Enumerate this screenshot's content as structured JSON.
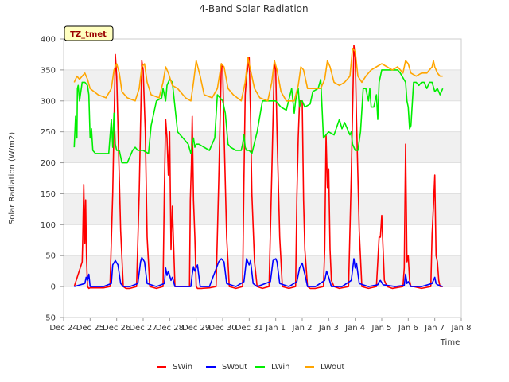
{
  "chart_data": {
    "type": "line",
    "title": "4-Band Solar Radiation",
    "xlabel": "Time",
    "ylabel": "Solar Radiation (W/m2)",
    "ylim": [
      -50,
      400
    ],
    "yticks": [
      -50,
      0,
      50,
      100,
      150,
      200,
      250,
      300,
      350,
      400
    ],
    "xlim": [
      0,
      15
    ],
    "xtick_values": [
      0,
      1,
      2,
      3,
      4,
      5,
      6,
      7,
      8,
      9,
      10,
      11,
      12,
      13,
      14,
      15
    ],
    "xtick_labels": [
      "Dec 24",
      "Dec 25",
      "Dec 26",
      "Dec 27",
      "Dec 28",
      "Dec 29",
      "Dec 30",
      "Dec 31",
      "Jan 1",
      "Jan 2",
      "Jan 3",
      "Jan 4",
      "Jan 5",
      "Jan 6",
      "Jan 7",
      "Jan 8"
    ],
    "site_tag": "TZ_tmet",
    "colors": {
      "SWin": "#ff0000",
      "SWout": "#0000ff",
      "LWin": "#00ee00",
      "LWout": "#ffa500",
      "band": "#f0f0f0",
      "tag_bg": "#ffffc0",
      "tag_text": "#990000"
    },
    "series": [
      {
        "name": "SWin",
        "color": "#ff0000",
        "x": [
          0.4,
          0.7,
          0.72,
          0.76,
          0.8,
          0.83,
          0.86,
          0.9,
          0.95,
          1.0,
          1.5,
          1.75,
          1.85,
          1.95,
          2.0,
          2.05,
          2.15,
          2.25,
          2.35,
          2.5,
          2.75,
          2.85,
          2.95,
          3.0,
          3.08,
          3.15,
          3.25,
          3.5,
          3.75,
          3.8,
          3.85,
          3.9,
          3.95,
          4.0,
          4.05,
          4.1,
          4.2,
          4.75,
          4.78,
          4.82,
          4.85,
          4.9,
          4.95,
          5.0,
          5.05,
          5.1,
          5.2,
          5.5,
          5.75,
          5.85,
          5.95,
          6.0,
          6.05,
          6.15,
          6.25,
          6.5,
          6.75,
          6.8,
          6.85,
          6.9,
          7.0,
          7.05,
          7.1,
          7.2,
          7.3,
          7.5,
          7.75,
          7.85,
          7.95,
          8.0,
          8.05,
          8.15,
          8.25,
          8.5,
          8.75,
          8.8,
          8.85,
          8.9,
          9.0,
          9.05,
          9.1,
          9.2,
          9.3,
          9.5,
          9.8,
          9.85,
          9.9,
          9.95,
          10.0,
          10.05,
          10.1,
          10.2,
          10.4,
          10.75,
          10.85,
          10.95,
          11.0,
          11.05,
          11.15,
          11.25,
          11.5,
          11.8,
          11.85,
          11.9,
          11.95,
          12.0,
          12.05,
          12.1,
          12.2,
          12.4,
          12.8,
          12.85,
          12.9,
          12.95,
          13.0,
          13.05,
          13.1,
          13.2,
          13.5,
          13.85,
          13.9,
          13.95,
          14.0,
          14.05,
          14.1,
          14.15,
          14.2,
          14.3
        ],
        "y": [
          0,
          40,
          75,
          165,
          70,
          140,
          50,
          0,
          -3,
          -2,
          -2,
          0,
          150,
          375,
          340,
          260,
          90,
          0,
          -3,
          -3,
          0,
          150,
          365,
          350,
          250,
          80,
          0,
          -3,
          0,
          160,
          270,
          240,
          180,
          250,
          60,
          130,
          0,
          0,
          140,
          200,
          275,
          140,
          80,
          0,
          -3,
          -3,
          -3,
          -2,
          0,
          170,
          360,
          355,
          250,
          80,
          0,
          -3,
          0,
          170,
          310,
          340,
          370,
          280,
          150,
          40,
          0,
          -3,
          0,
          180,
          365,
          350,
          250,
          80,
          0,
          -3,
          0,
          145,
          240,
          300,
          300,
          140,
          60,
          0,
          -3,
          -3,
          0,
          60,
          245,
          160,
          190,
          60,
          10,
          0,
          -3,
          0,
          180,
          390,
          370,
          270,
          90,
          0,
          -3,
          0,
          40,
          80,
          80,
          115,
          60,
          10,
          0,
          -3,
          0,
          30,
          230,
          40,
          50,
          10,
          0,
          0,
          -3,
          0,
          85,
          130,
          180,
          50,
          40,
          10,
          0,
          0
        ]
      },
      {
        "name": "SWout",
        "color": "#0000ff",
        "x": [
          0.4,
          0.8,
          0.85,
          0.9,
          0.95,
          1.0,
          1.5,
          1.8,
          1.85,
          1.95,
          2.05,
          2.15,
          2.25,
          2.5,
          2.8,
          2.9,
          2.95,
          3.05,
          3.15,
          3.5,
          3.8,
          3.85,
          3.9,
          3.95,
          4.05,
          4.1,
          4.2,
          4.8,
          4.85,
          4.9,
          4.95,
          5.05,
          5.15,
          5.5,
          5.85,
          5.95,
          6.05,
          6.15,
          6.5,
          6.8,
          6.9,
          7.0,
          7.05,
          7.15,
          7.3,
          7.8,
          7.9,
          8.0,
          8.05,
          8.15,
          8.5,
          8.8,
          8.9,
          9.0,
          9.1,
          9.2,
          9.5,
          9.85,
          9.92,
          10.0,
          10.1,
          10.5,
          10.85,
          10.95,
          11.0,
          11.05,
          11.15,
          11.5,
          11.85,
          11.9,
          11.95,
          12.05,
          12.5,
          12.85,
          12.9,
          12.95,
          13.0,
          13.1,
          13.5,
          13.9,
          13.95,
          14.0,
          14.05,
          14.1,
          14.3
        ],
        "y": [
          0,
          5,
          15,
          10,
          20,
          0,
          0,
          5,
          35,
          42,
          35,
          5,
          0,
          0,
          5,
          40,
          47,
          40,
          5,
          0,
          5,
          30,
          18,
          25,
          10,
          15,
          0,
          0,
          20,
          32,
          25,
          35,
          0,
          0,
          40,
          45,
          40,
          5,
          0,
          8,
          45,
          35,
          42,
          5,
          0,
          8,
          42,
          45,
          40,
          5,
          0,
          8,
          30,
          38,
          20,
          0,
          0,
          10,
          25,
          15,
          0,
          0,
          10,
          45,
          30,
          38,
          5,
          0,
          3,
          8,
          10,
          3,
          0,
          2,
          20,
          5,
          8,
          0,
          0,
          5,
          10,
          15,
          5,
          3,
          0
        ]
      },
      {
        "name": "LWin",
        "color": "#00ee00",
        "x": [
          0.4,
          0.45,
          0.5,
          0.52,
          0.55,
          0.6,
          0.7,
          0.8,
          0.9,
          0.95,
          1.0,
          1.05,
          1.1,
          1.2,
          1.5,
          1.7,
          1.8,
          1.85,
          1.9,
          1.95,
          2.0,
          2.1,
          2.2,
          2.4,
          2.6,
          2.7,
          2.8,
          3.0,
          3.2,
          3.3,
          3.5,
          3.7,
          3.75,
          3.8,
          3.85,
          3.9,
          4.0,
          4.1,
          4.3,
          4.5,
          4.7,
          4.8,
          4.9,
          4.95,
          5.0,
          5.1,
          5.5,
          5.7,
          5.8,
          6.0,
          6.1,
          6.2,
          6.3,
          6.5,
          6.6,
          6.7,
          6.75,
          6.8,
          6.85,
          6.9,
          7.0,
          7.1,
          7.3,
          7.5,
          8.0,
          8.2,
          8.4,
          8.6,
          8.65,
          8.7,
          8.75,
          8.8,
          8.85,
          8.9,
          8.95,
          9.0,
          9.1,
          9.3,
          9.4,
          9.6,
          9.7,
          9.8,
          10.0,
          10.2,
          10.4,
          10.5,
          10.6,
          10.7,
          10.8,
          10.85,
          10.9,
          11.0,
          11.1,
          11.2,
          11.3,
          11.4,
          11.5,
          11.55,
          11.6,
          11.7,
          11.8,
          11.85,
          11.9,
          12.0,
          12.1,
          12.2,
          12.3,
          12.4,
          12.5,
          12.6,
          12.7,
          12.9,
          12.95,
          13.0,
          13.05,
          13.1,
          13.2,
          13.3,
          13.4,
          13.5,
          13.6,
          13.7,
          13.8,
          13.9,
          14.0,
          14.1,
          14.2,
          14.3
        ],
        "y": [
          225,
          275,
          240,
          320,
          325,
          300,
          330,
          330,
          325,
          310,
          240,
          255,
          220,
          215,
          215,
          215,
          270,
          225,
          280,
          230,
          220,
          220,
          200,
          200,
          220,
          225,
          220,
          220,
          215,
          260,
          300,
          305,
          320,
          310,
          300,
          325,
          335,
          330,
          250,
          240,
          230,
          215,
          240,
          225,
          230,
          230,
          220,
          240,
          310,
          300,
          280,
          230,
          225,
          220,
          220,
          220,
          230,
          245,
          225,
          220,
          220,
          215,
          250,
          300,
          300,
          290,
          285,
          320,
          300,
          280,
          300,
          310,
          320,
          290,
          300,
          300,
          290,
          295,
          315,
          320,
          335,
          240,
          250,
          245,
          270,
          255,
          265,
          255,
          245,
          250,
          230,
          220,
          220,
          250,
          320,
          320,
          300,
          320,
          290,
          290,
          310,
          270,
          330,
          350,
          350,
          350,
          350,
          350,
          350,
          350,
          345,
          330,
          300,
          290,
          255,
          260,
          330,
          330,
          325,
          330,
          330,
          320,
          330,
          330,
          315,
          320,
          310,
          320
        ],
        "note": "approximate envelope of noisy trace"
      },
      {
        "name": "LWout",
        "color": "#ffa500",
        "x": [
          0.4,
          0.5,
          0.6,
          0.7,
          0.8,
          0.9,
          1.0,
          1.3,
          1.6,
          1.8,
          1.9,
          2.0,
          2.1,
          2.2,
          2.4,
          2.7,
          2.85,
          2.95,
          3.05,
          3.15,
          3.3,
          3.6,
          3.75,
          3.85,
          3.95,
          4.1,
          4.3,
          4.6,
          4.8,
          4.9,
          5.0,
          5.15,
          5.3,
          5.6,
          5.8,
          5.95,
          6.05,
          6.2,
          6.4,
          6.7,
          6.85,
          6.95,
          7.05,
          7.2,
          7.4,
          7.7,
          7.85,
          7.95,
          8.05,
          8.2,
          8.4,
          8.7,
          8.85,
          8.95,
          9.05,
          9.2,
          9.4,
          9.7,
          9.85,
          9.95,
          10.05,
          10.2,
          10.4,
          10.6,
          10.8,
          10.9,
          11.0,
          11.1,
          11.25,
          11.4,
          11.6,
          11.8,
          12.0,
          12.2,
          12.4,
          12.6,
          12.8,
          12.9,
          13.0,
          13.1,
          13.3,
          13.5,
          13.7,
          13.9,
          13.95,
          14.0,
          14.1,
          14.2,
          14.3
        ],
        "y": [
          330,
          340,
          335,
          340,
          345,
          335,
          320,
          310,
          305,
          320,
          350,
          360,
          345,
          315,
          305,
          300,
          320,
          355,
          360,
          330,
          310,
          305,
          330,
          355,
          345,
          325,
          320,
          305,
          300,
          330,
          365,
          340,
          310,
          305,
          320,
          360,
          355,
          320,
          310,
          300,
          330,
          370,
          350,
          320,
          305,
          300,
          330,
          365,
          350,
          315,
          300,
          300,
          325,
          355,
          350,
          320,
          320,
          320,
          335,
          365,
          355,
          330,
          325,
          330,
          340,
          385,
          380,
          340,
          330,
          340,
          350,
          355,
          360,
          355,
          350,
          355,
          345,
          365,
          360,
          345,
          340,
          345,
          345,
          355,
          365,
          355,
          345,
          340,
          340
        ]
      }
    ],
    "legend": {
      "placement": "bottom-center",
      "entries": [
        "SWin",
        "SWout",
        "LWin",
        "LWout"
      ]
    }
  }
}
